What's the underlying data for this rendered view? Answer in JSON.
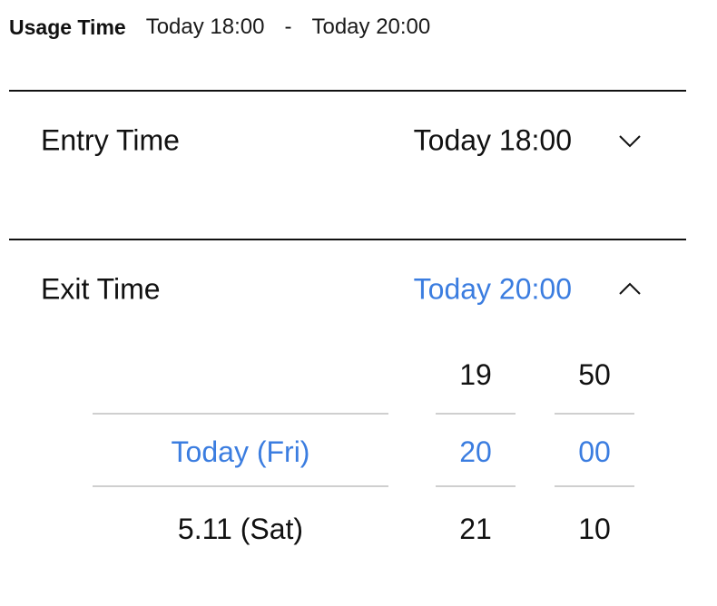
{
  "summary": {
    "label": "Usage Time",
    "start": "Today 18:00",
    "separator": "-",
    "end": "Today 20:00"
  },
  "entry": {
    "label": "Entry Time",
    "value": "Today 18:00",
    "chevron_icon": "chevron-down-icon"
  },
  "exit": {
    "label": "Exit Time",
    "value": "Today 20:00",
    "chevron_icon": "chevron-up-icon",
    "accent_color": "#3b7de0"
  },
  "picker": {
    "days": [
      "",
      "Today (Fri)",
      "5.11 (Sat)"
    ],
    "hours": [
      "19",
      "20",
      "21"
    ],
    "minutes": [
      "50",
      "00",
      "10"
    ],
    "selected_index": 1
  }
}
